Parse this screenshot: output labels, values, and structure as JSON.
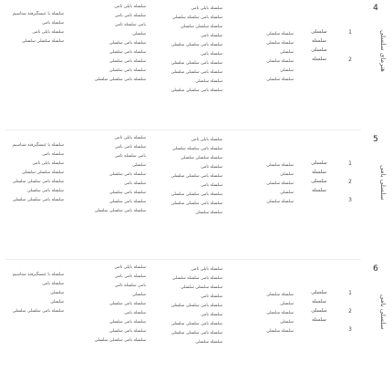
{
  "sections": [
    {
      "number": "4",
      "title": "هنرمای سلسلی",
      "columns": {
        "c1": [
          "سلسله با عبسگیرفته شناسیم",
          "سلسله بامی",
          "سلسله بایلی نامی",
          "سلسله سلسلی سلسلی"
        ],
        "c2": [
          "سلسله بایلی تامی",
          "سلسله نامی بامی",
          "بامی سلسله تامی",
          "سلسلی",
          "سلسله بامی سلسلی",
          "سلسله بامی سلسلی",
          "سلسله بامی سلسلی",
          "سلسله بامی سلسلی",
          "سلسله بامی سلسلی سلسلی"
        ],
        "c3": [
          "سلسله بایلی تامی",
          "سلسله بامی سلسله سلسلی",
          "سلسله سلسلی سلسلی",
          "سلسله تامی",
          "سلسله بامی سلسلی سلسلی",
          "سلسله بامی",
          "سلسله بامی سلسلی سلسلی",
          "سلسله بامی سلسلی سلسلی",
          "سلسله سلسلی",
          "سلسله بامی سلسلی سلسلی"
        ],
        "c4": [
          "سلسله سلسلی",
          "سلسله سلسلی",
          "سلسلی",
          "سلسله سلسلی",
          "سلسلی",
          "سلسله سلسلی"
        ],
        "c5": [
          "سلسلی",
          "سلسله",
          "سلسلی",
          "سلسله"
        ],
        "c6": [
          "1",
          "",
          "",
          "2"
        ]
      }
    },
    {
      "number": "5",
      "title": "سلسلی بامی",
      "columns": {
        "c1": [
          "سلسله با عبسگیرفته شناسیم",
          "سلسله بامی",
          "سلسله بایلی نامی",
          "سلسله سلسلی سلسلی",
          "سلسله بامی سلسلی سلسلی",
          "سلسله بامی سلسلی",
          "سلسله بامی سلسلی سلسلی"
        ],
        "c2": [
          "سلسله بایلی تامی",
          "سلسله نامی بامی",
          "بامی سلسله تامی",
          "سلسلی",
          "سلسله بامی سلسلی",
          "سلسله بامی",
          "سلسله بامی سلسلی",
          "سلسله بامی سلسلی",
          "سلسله بامی سلسلی سلسلی"
        ],
        "c3": [
          "سلسله بایلی تامی",
          "سلسله بامی سلسله سلسلی",
          "سلسله سلسلی سلسلی",
          "سلسله تامی",
          "سلسله بامی سلسلی سلسلی",
          "سلسله بامی",
          "سلسله بامی سلسلی سلسلی",
          "سلسله بامی سلسلی سلسلی",
          "سلسله سلسلی"
        ],
        "c4": [
          "سلسله سلسلی",
          "سلسلی",
          "سلسله سلسلی",
          "سلسلی",
          "سلسله سلسلی"
        ],
        "c5": [
          "سلسلی",
          "سلسله",
          "سلسلی",
          "سلسله"
        ],
        "c6": [
          "1",
          "",
          "2",
          "",
          "3"
        ]
      }
    },
    {
      "number": "6",
      "title": "سلسلی بامی",
      "columns": {
        "c1": [
          "سلسله با عبسگیرفته شناسیم",
          "سلسله بامی",
          "سلسلی",
          "سلسلی",
          "سلسله بامی سلسلی سلسلی"
        ],
        "c2": [
          "سلسله بایلی تامی",
          "سلسله نامی بامی",
          "بامی سلسله تامی",
          "سلسلی",
          "سلسله بامی سلسلی",
          "سلسله بامی",
          "سلسله بامی سلسلی",
          "سلسله بامی سلسلی",
          "سلسله بامی سلسلی سلسلی"
        ],
        "c3": [
          "سلسله بایلی تامی",
          "سلسله بامی سلسله سلسلی",
          "سلسله سلسلی سلسلی",
          "سلسله تامی",
          "سلسله بامی سلسلی سلسلی",
          "سلسله بامی",
          "سلسله بامی سلسلی سلسلی",
          "سلسله بامی سلسلی سلسلی",
          "سلسله سلسلی"
        ],
        "c4": [
          "سلسله سلسلی",
          "سلسلی",
          "سلسله سلسلی",
          "سلسلی",
          "سلسله سلسلی"
        ],
        "c5": [
          "سلسلی",
          "سلسله",
          "سلسلی",
          "سلسله"
        ],
        "c6": [
          "1",
          "",
          "2",
          "",
          "3"
        ]
      }
    }
  ]
}
